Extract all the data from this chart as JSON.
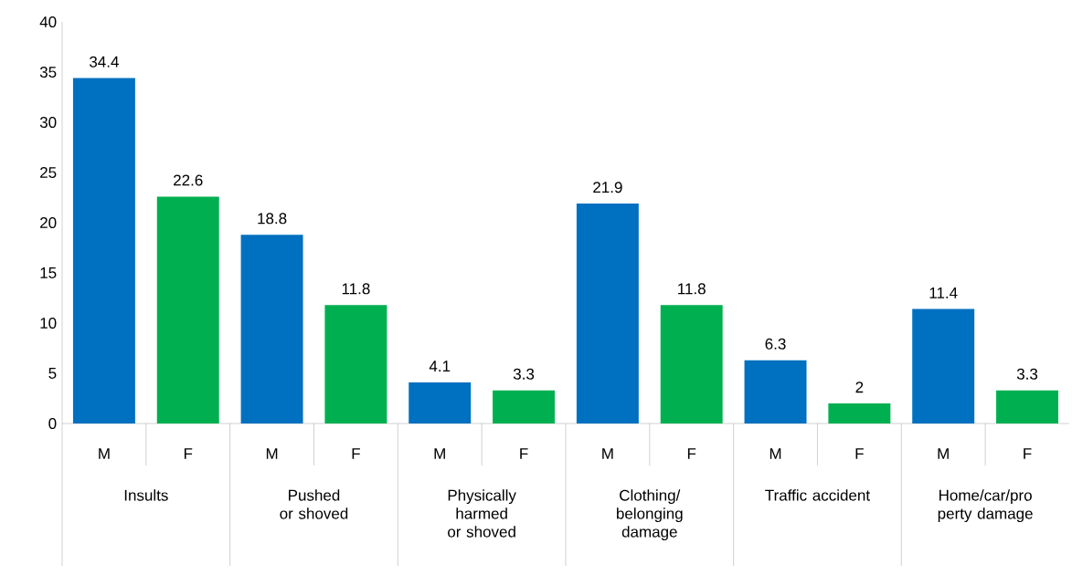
{
  "chart_data": {
    "type": "bar",
    "categories": [
      "Insults",
      "Pushed or shoved",
      "Physically harmed or shoved",
      "Clothing/ belonging damage",
      "Traffic accident",
      "Home/car/pro perty damage"
    ],
    "series": [
      {
        "name": "M",
        "color": "#0070c0",
        "values": [
          34.4,
          18.8,
          4.1,
          21.9,
          6.3,
          11.4
        ]
      },
      {
        "name": "F",
        "color": "#00b050",
        "values": [
          22.6,
          11.8,
          3.3,
          11.8,
          2,
          3.3
        ]
      }
    ],
    "ylim": [
      0,
      40
    ],
    "yticks": [
      0,
      5,
      10,
      15,
      20,
      25,
      30,
      35,
      40
    ],
    "data_labels": true
  }
}
